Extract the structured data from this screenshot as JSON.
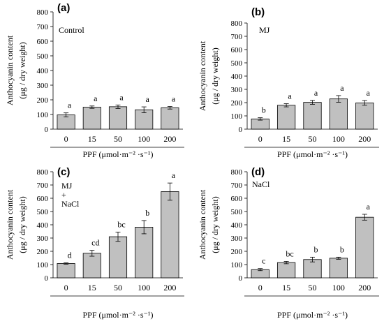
{
  "chart_data": [
    {
      "type": "bar",
      "panel": "(a)",
      "condition_lines": [
        "Control"
      ],
      "categories": [
        "0",
        "15",
        "50",
        "100",
        "200"
      ],
      "values": [
        97,
        150,
        153,
        132,
        146
      ],
      "errors": [
        14,
        8,
        12,
        20,
        9
      ],
      "significance": [
        "a",
        "a",
        "a",
        "a",
        "a"
      ],
      "ylabel_lines": [
        "Anthocyanin content",
        "(μg / dry weight)"
      ],
      "xlabel": "PPF (μmol·m⁻² ·s⁻¹)",
      "ylim": [
        0,
        800
      ],
      "yticks": [
        0,
        100,
        200,
        300,
        400,
        500,
        600,
        700,
        800
      ]
    },
    {
      "type": "bar",
      "panel": "(b)",
      "condition_lines": [
        "MJ"
      ],
      "categories": [
        "0",
        "15",
        "50",
        "100",
        "200"
      ],
      "values": [
        77,
        180,
        202,
        228,
        198
      ],
      "errors": [
        9,
        12,
        15,
        25,
        18
      ],
      "significance": [
        "b",
        "a",
        "a",
        "a",
        "a"
      ],
      "ylabel_lines": [
        "Anthocyanin content",
        "(μg / dry weight)"
      ],
      "xlabel": "PPF (μmol·m⁻² ·s⁻¹)",
      "ylim": [
        0,
        800
      ],
      "yticks": [
        0,
        100,
        200,
        300,
        400,
        500,
        600,
        700,
        800
      ]
    },
    {
      "type": "bar",
      "panel": "(c)",
      "condition_lines": [
        "MJ",
        "+",
        "NaCl"
      ],
      "categories": [
        "0",
        "15",
        "50",
        "100",
        "200"
      ],
      "values": [
        108,
        185,
        310,
        382,
        650
      ],
      "errors": [
        5,
        22,
        35,
        50,
        65
      ],
      "significance": [
        "d",
        "cd",
        "bc",
        "b",
        "a"
      ],
      "ylabel_lines": [
        "Anthocyanin content",
        "(μg / dry weight)"
      ],
      "xlabel": "PPF (μmol·m⁻² ·s⁻¹)",
      "ylim": [
        0,
        800
      ],
      "yticks": [
        0,
        100,
        200,
        300,
        400,
        500,
        600,
        700,
        800
      ]
    },
    {
      "type": "bar",
      "panel": "(d)",
      "condition_lines": [
        "NaCl"
      ],
      "categories": [
        "0",
        "15",
        "50",
        "100",
        "200"
      ],
      "values": [
        62,
        115,
        138,
        148,
        457
      ],
      "errors": [
        8,
        9,
        18,
        8,
        22
      ],
      "significance": [
        "c",
        "bc",
        "b",
        "b",
        "a"
      ],
      "ylabel_lines": [
        "Anthocyanin content",
        "(μg / dry weight)"
      ],
      "xlabel": "PPF (μmol·m⁻² ·s⁻¹)",
      "ylim": [
        0,
        800
      ],
      "yticks": [
        0,
        100,
        200,
        300,
        400,
        500,
        600,
        700,
        800
      ]
    }
  ]
}
